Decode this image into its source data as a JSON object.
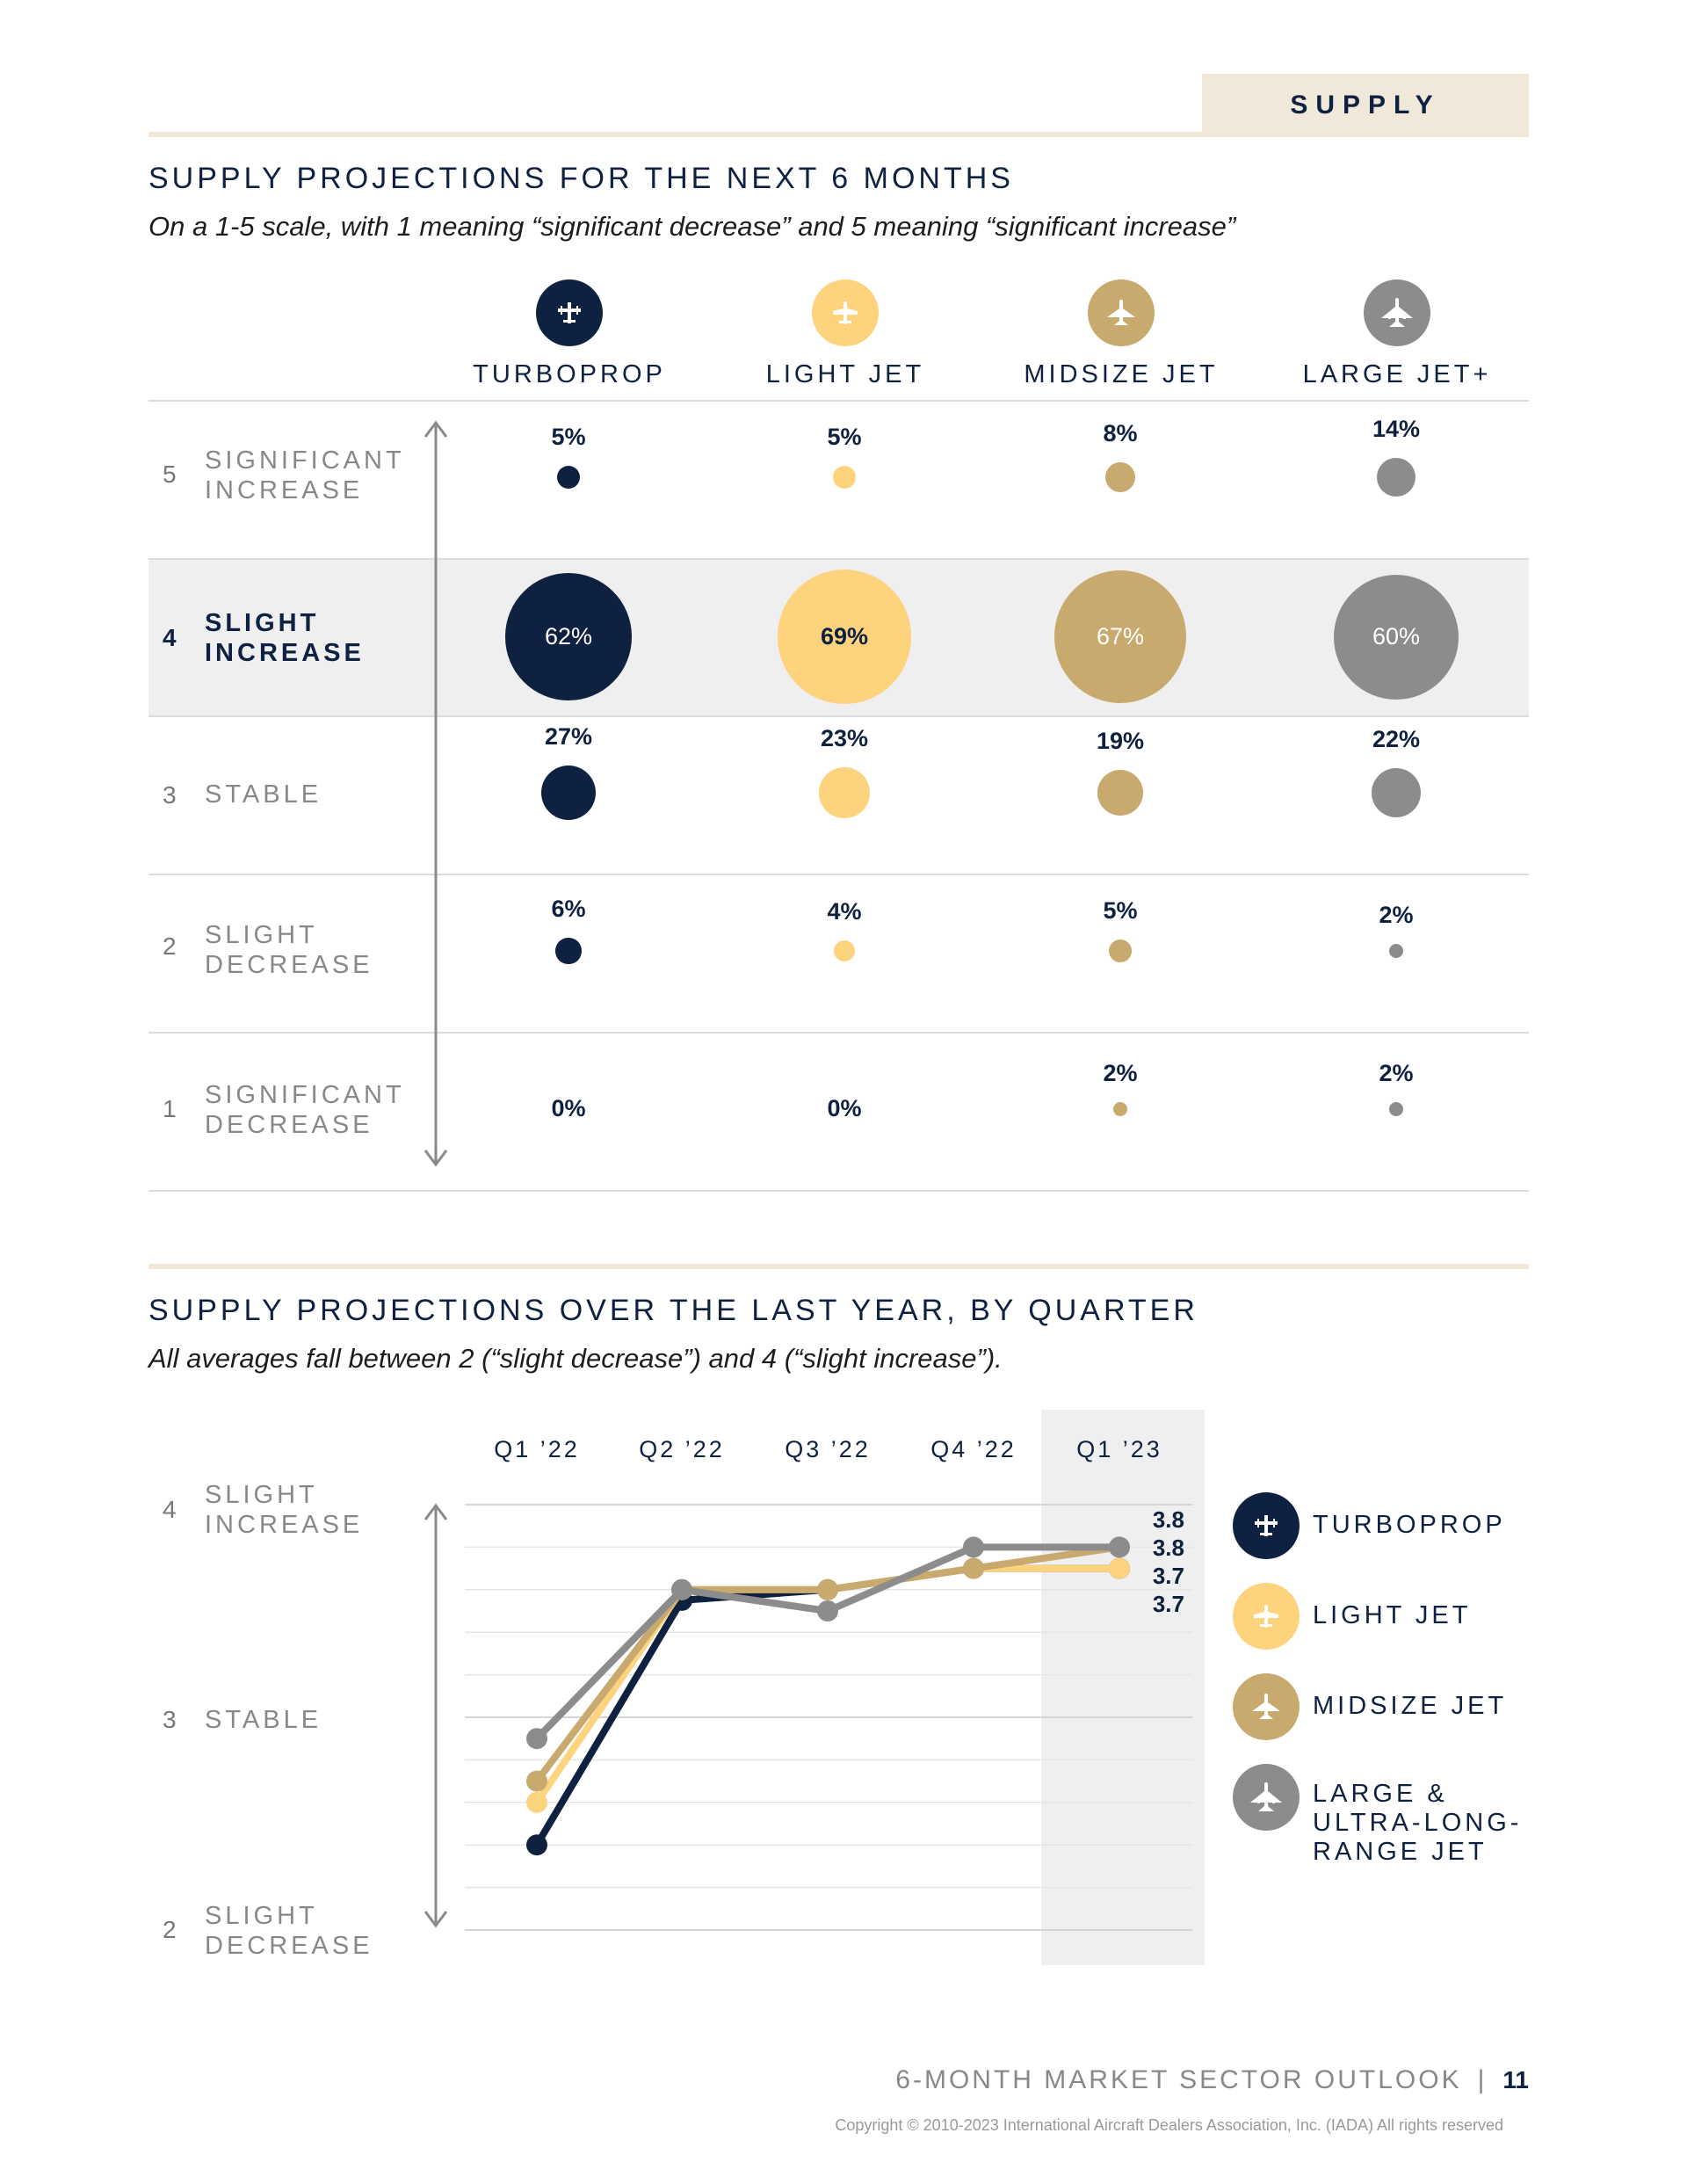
{
  "section_tag": "SUPPLY",
  "projections": {
    "title": "SUPPLY PROJECTIONS FOR THE NEXT 6 MONTHS",
    "subtitle": "On a 1-5 scale, with 1 meaning “significant decrease” and 5 meaning “significant increase”",
    "columns": [
      {
        "label": "TURBOPROP",
        "icon": "turboprop-icon",
        "color": "#0f2140"
      },
      {
        "label": "LIGHT JET",
        "icon": "light-jet-icon",
        "color": "#fdd37e"
      },
      {
        "label": "MIDSIZE JET",
        "icon": "midsize-jet-icon",
        "color": "#c8a96e"
      },
      {
        "label": "LARGE JET+",
        "icon": "large-jet-icon",
        "color": "#8c8c8c"
      }
    ],
    "rows": [
      {
        "num": "5",
        "label_1": "SIGNIFICANT",
        "label_2": "INCREASE"
      },
      {
        "num": "4",
        "label_1": "SLIGHT",
        "label_2": "INCREASE"
      },
      {
        "num": "3",
        "label_1": "STABLE",
        "label_2": ""
      },
      {
        "num": "2",
        "label_1": "SLIGHT",
        "label_2": "DECREASE"
      },
      {
        "num": "1",
        "label_1": "SIGNIFICANT",
        "label_2": "DECREASE"
      }
    ]
  },
  "chart_data": [
    {
      "type": "bubble-table",
      "categories": [
        "TURBOPROP",
        "LIGHT JET",
        "MIDSIZE JET",
        "LARGE JET+"
      ],
      "rows": [
        "5",
        "4",
        "3",
        "2",
        "1"
      ],
      "values": {
        "TURBOPROP": [
          5,
          62,
          27,
          6,
          0
        ],
        "LIGHT JET": [
          5,
          69,
          23,
          4,
          0
        ],
        "MIDSIZE JET": [
          8,
          67,
          19,
          5,
          2
        ],
        "LARGE JET+": [
          14,
          60,
          22,
          2,
          2
        ]
      },
      "labels": {
        "TURBOPROP": [
          "5%",
          "62%",
          "27%",
          "6%",
          "0%"
        ],
        "LIGHT JET": [
          "5%",
          "69%",
          "23%",
          "4%",
          "0%"
        ],
        "MIDSIZE JET": [
          "8%",
          "67%",
          "19%",
          "5%",
          "2%"
        ],
        "LARGE JET+": [
          "14%",
          "60%",
          "22%",
          "2%",
          "2%"
        ]
      },
      "highlight_row": "4"
    },
    {
      "type": "line",
      "title": "SUPPLY PROJECTIONS OVER THE LAST YEAR, BY QUARTER",
      "subtitle": "All averages fall between 2 (“slight decrease”) and 4 (“slight increase”).",
      "categories": [
        "Q1 ’22",
        "Q2 ’22",
        "Q3 ’22",
        "Q4 ’22",
        "Q1 ’23"
      ],
      "ylim": [
        2,
        4
      ],
      "y_labels": [
        {
          "value": 4,
          "num": "4",
          "label_1": "SLIGHT",
          "label_2": "INCREASE"
        },
        {
          "value": 3,
          "num": "3",
          "label_1": "STABLE",
          "label_2": ""
        },
        {
          "value": 2,
          "num": "2",
          "label_1": "SLIGHT",
          "label_2": "DECREASE"
        }
      ],
      "highlight_category": "Q1 ’23",
      "end_labels": [
        "3.8",
        "3.8",
        "3.7",
        "3.7"
      ],
      "grid": true,
      "legend_position": "right",
      "series": [
        {
          "name": "TURBOPROP",
          "color": "#0f2140",
          "values": [
            2.4,
            3.55,
            3.6,
            3.7,
            3.7
          ]
        },
        {
          "name": "LIGHT JET",
          "color": "#fdd37e",
          "values": [
            2.6,
            3.6,
            3.6,
            3.7,
            3.7
          ]
        },
        {
          "name": "MIDSIZE JET",
          "color": "#c8a96e",
          "values": [
            2.7,
            3.6,
            3.6,
            3.7,
            3.8
          ]
        },
        {
          "name": "LARGE & ULTRA-LONG-RANGE JET",
          "color": "#8c8c8c",
          "values": [
            2.9,
            3.6,
            3.5,
            3.8,
            3.8
          ]
        }
      ]
    }
  ],
  "legend": [
    {
      "line_1": "TURBOPROP",
      "line_2": "",
      "line_3": "",
      "icon": "turboprop-icon",
      "color": "#0f2140"
    },
    {
      "line_1": "LIGHT JET",
      "line_2": "",
      "line_3": "",
      "icon": "light-jet-icon",
      "color": "#fdd37e"
    },
    {
      "line_1": "MIDSIZE JET",
      "line_2": "",
      "line_3": "",
      "icon": "midsize-jet-icon",
      "color": "#c8a96e"
    },
    {
      "line_1": "LARGE &",
      "line_2": "ULTRA-LONG-",
      "line_3": "RANGE JET",
      "icon": "large-jet-icon",
      "color": "#8c8c8c"
    }
  ],
  "footer": {
    "title": "6-MONTH MARKET SECTOR OUTLOOK",
    "separator": "|",
    "page": "11",
    "copyright": "Copyright © 2010-2023 International Aircraft Dealers Association, Inc. (IADA) All rights reserved"
  }
}
